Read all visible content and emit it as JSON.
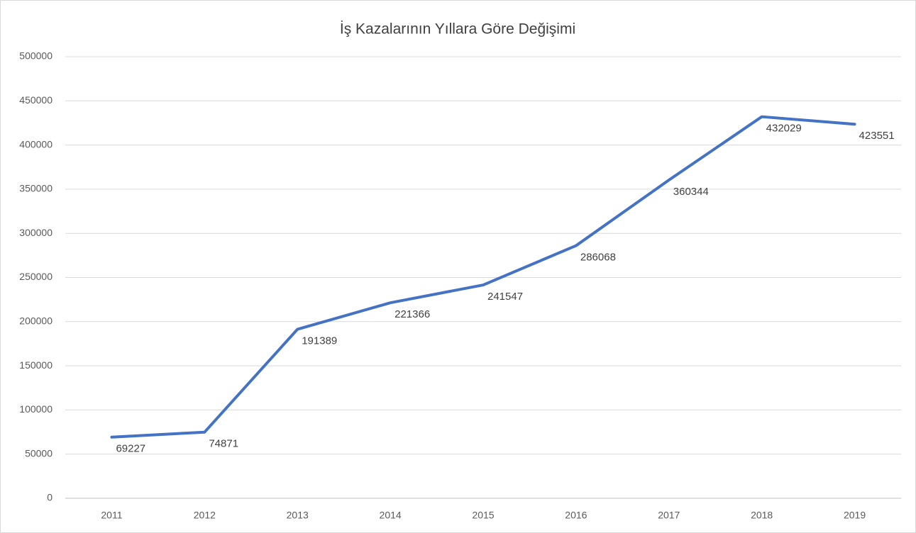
{
  "chart_data": {
    "type": "line",
    "title": "İş Kazalarının Yıllara Göre Değişimi",
    "categories": [
      "2011",
      "2012",
      "2013",
      "2014",
      "2015",
      "2016",
      "2017",
      "2018",
      "2019"
    ],
    "values": [
      69227,
      74871,
      191389,
      221366,
      241547,
      286068,
      360344,
      432029,
      423551
    ],
    "color": "#4472c4",
    "ylim": [
      0,
      500000
    ],
    "yticks": [
      0,
      50000,
      100000,
      150000,
      200000,
      250000,
      300000,
      350000,
      400000,
      450000,
      500000
    ],
    "grid": true,
    "data_labels": true
  }
}
